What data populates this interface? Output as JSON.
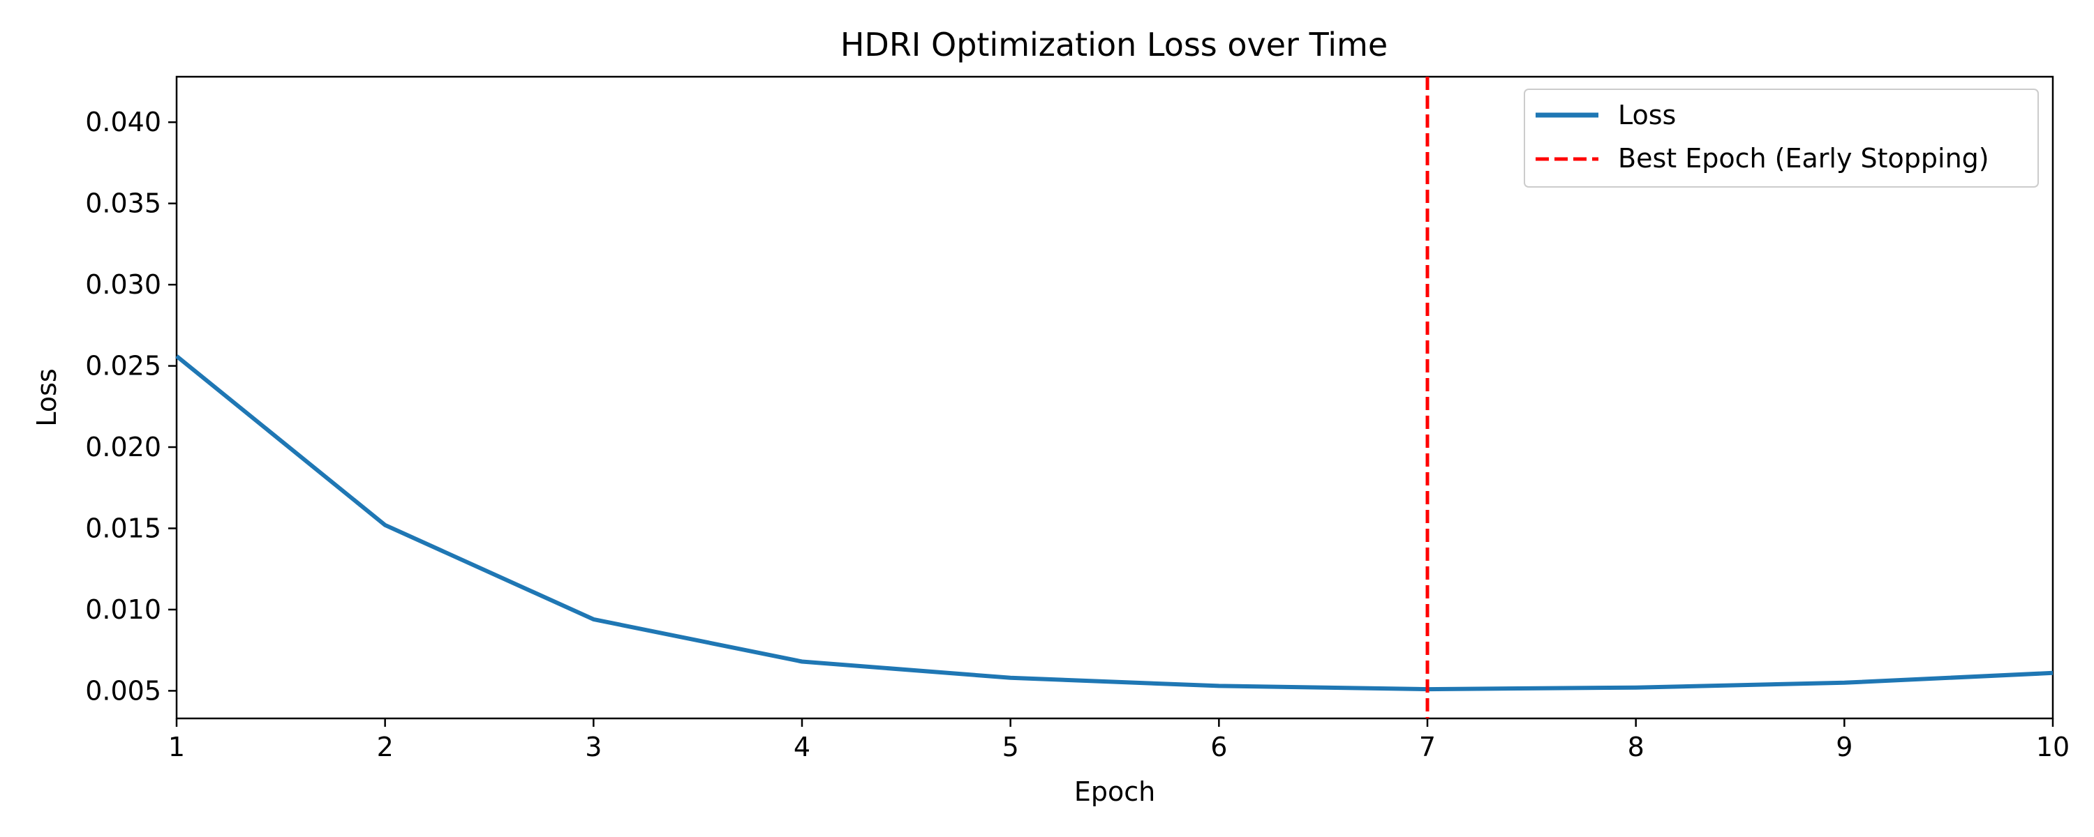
{
  "chart_data": {
    "type": "line",
    "title": "HDRI Optimization Loss over Time",
    "xlabel": "Epoch",
    "ylabel": "Loss",
    "xlim": [
      1,
      10
    ],
    "ylim": [
      0.0033,
      0.0428
    ],
    "x_ticks": [
      1,
      2,
      3,
      4,
      5,
      6,
      7,
      8,
      9,
      10
    ],
    "x_tick_labels": [
      "1",
      "2",
      "3",
      "4",
      "5",
      "6",
      "7",
      "8",
      "9",
      "10"
    ],
    "y_ticks": [
      0.005,
      0.01,
      0.015,
      0.02,
      0.025,
      0.03,
      0.035,
      0.04
    ],
    "y_tick_labels": [
      "0.005",
      "0.010",
      "0.015",
      "0.020",
      "0.025",
      "0.030",
      "0.035",
      "0.040"
    ],
    "grid": false,
    "legend_position": "top-right",
    "series": [
      {
        "name": "Loss",
        "color": "#1f77b4",
        "style": "solid",
        "x": [
          1,
          2,
          3,
          4,
          5,
          6,
          7,
          8,
          9,
          10
        ],
        "y": [
          0.0256,
          0.0152,
          0.0094,
          0.0068,
          0.0058,
          0.0053,
          0.0051,
          0.0052,
          0.0055,
          0.0061
        ]
      }
    ],
    "vlines": [
      {
        "name": "Best Epoch (Early Stopping)",
        "x": 7,
        "color": "#ff0000",
        "style": "dashed"
      }
    ]
  }
}
